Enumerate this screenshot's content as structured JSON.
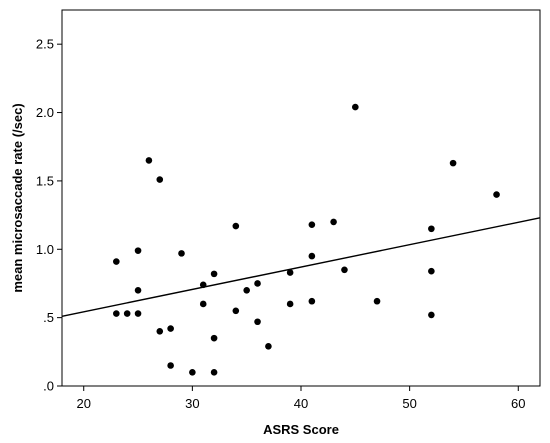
{
  "chart_data": {
    "type": "scatter",
    "title": "",
    "xlabel": "ASRS Score",
    "ylabel": "mean microsaccade rate (/sec)",
    "xlim": [
      18,
      62
    ],
    "ylim": [
      0,
      2.75
    ],
    "x_ticks": [
      20,
      30,
      40,
      50,
      60
    ],
    "x_tick_labels": [
      "20",
      "30",
      "40",
      "50",
      "60"
    ],
    "y_ticks": [
      0,
      0.5,
      1.0,
      1.5,
      2.0,
      2.5
    ],
    "y_tick_labels": [
      ".0",
      ".5",
      "1.0",
      "1.5",
      "2.0",
      "2.5"
    ],
    "grid": false,
    "legend": "none",
    "colors": {
      "points": "#000000",
      "fit_line": "#000000",
      "frame": "#000000",
      "background": "#ffffff"
    },
    "fit_line": {
      "y_at_xmin": 0.51,
      "y_at_xmax": 1.23
    },
    "points": [
      {
        "x": 23,
        "y": 0.91
      },
      {
        "x": 23,
        "y": 0.53
      },
      {
        "x": 24,
        "y": 0.53
      },
      {
        "x": 25,
        "y": 0.99
      },
      {
        "x": 25,
        "y": 0.7
      },
      {
        "x": 25,
        "y": 0.53
      },
      {
        "x": 26,
        "y": 1.65
      },
      {
        "x": 27,
        "y": 1.51
      },
      {
        "x": 27,
        "y": 0.4
      },
      {
        "x": 28,
        "y": 0.42
      },
      {
        "x": 28,
        "y": 0.15
      },
      {
        "x": 29,
        "y": 0.97
      },
      {
        "x": 30,
        "y": 0.1
      },
      {
        "x": 31,
        "y": 0.74
      },
      {
        "x": 31,
        "y": 0.6
      },
      {
        "x": 32,
        "y": 0.82
      },
      {
        "x": 32,
        "y": 0.35
      },
      {
        "x": 32,
        "y": 0.1
      },
      {
        "x": 34,
        "y": 1.17
      },
      {
        "x": 34,
        "y": 0.55
      },
      {
        "x": 35,
        "y": 0.7
      },
      {
        "x": 36,
        "y": 0.75
      },
      {
        "x": 36,
        "y": 0.47
      },
      {
        "x": 37,
        "y": 0.29
      },
      {
        "x": 39,
        "y": 0.83
      },
      {
        "x": 39,
        "y": 0.6
      },
      {
        "x": 41,
        "y": 1.18
      },
      {
        "x": 41,
        "y": 0.95
      },
      {
        "x": 41,
        "y": 0.62
      },
      {
        "x": 43,
        "y": 1.2
      },
      {
        "x": 44,
        "y": 0.85
      },
      {
        "x": 45,
        "y": 2.04
      },
      {
        "x": 47,
        "y": 0.62
      },
      {
        "x": 52,
        "y": 1.15
      },
      {
        "x": 52,
        "y": 0.84
      },
      {
        "x": 52,
        "y": 0.52
      },
      {
        "x": 54,
        "y": 1.63
      },
      {
        "x": 58,
        "y": 1.4
      }
    ]
  }
}
